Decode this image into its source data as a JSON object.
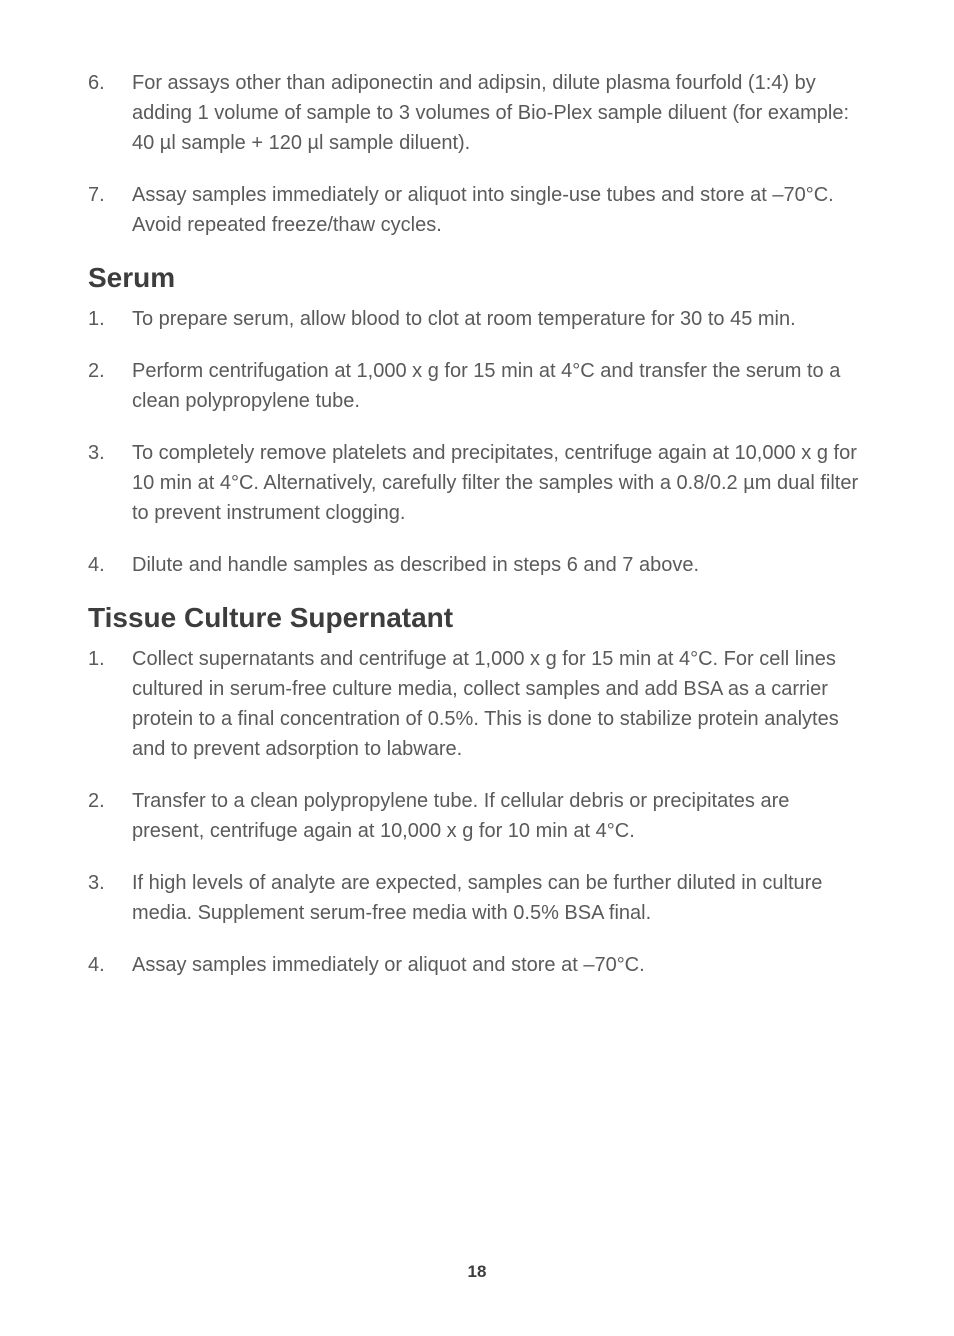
{
  "continuation": {
    "items": [
      {
        "num": "6.",
        "text": "For assays other than adiponectin and adipsin, dilute plasma fourfold (1:4) by adding 1 volume of sample to 3 volumes of Bio-Plex sample diluent (for example: 40 µl sample + 120 µl sample diluent)."
      },
      {
        "num": "7.",
        "text": "Assay samples immediately or aliquot into single-use tubes and store at –70°C. Avoid repeated freeze/thaw cycles."
      }
    ]
  },
  "serum": {
    "heading": "Serum",
    "items": [
      {
        "num": "1.",
        "text": "To prepare serum, allow blood to clot at room temperature for 30 to 45 min."
      },
      {
        "num": "2.",
        "text": "Perform centrifugation at 1,000 x g for 15 min at 4°C and transfer the serum to a clean polypropylene tube."
      },
      {
        "num": "3.",
        "text": "To completely remove platelets and precipitates, centrifuge again at 10,000 x g for 10 min at 4°C. Alternatively, carefully filter the samples with a 0.8/0.2 µm dual filter to prevent instrument clogging."
      },
      {
        "num": "4.",
        "text": "Dilute and handle samples as described in steps 6 and 7 above."
      }
    ]
  },
  "tissue": {
    "heading": "Tissue Culture Supernatant",
    "items": [
      {
        "num": "1.",
        "text": "Collect supernatants and centrifuge at 1,000 x g for 15 min at 4°C. For cell lines cultured in serum-free culture media, collect samples and add BSA as a carrier protein to a final concentration of 0.5%. This is done to stabilize protein analytes and to prevent adsorption to labware."
      },
      {
        "num": "2.",
        "text": "Transfer to a clean polypropylene tube. If cellular debris or precipitates are present, centrifuge again at 10,000 x g for 10 min at 4°C."
      },
      {
        "num": "3.",
        "text": "If high levels of analyte are expected, samples can be further diluted in culture media. Supplement serum-free media with 0.5% BSA final."
      },
      {
        "num": "4.",
        "text": "Assay samples immediately or aliquot and store at –70°C."
      }
    ]
  },
  "pageNumber": "18"
}
